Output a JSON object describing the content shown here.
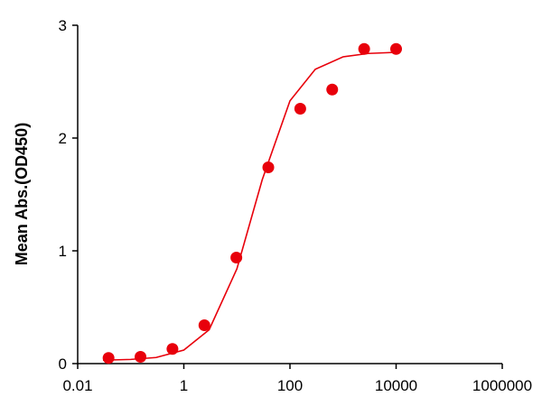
{
  "chart_data": {
    "type": "scatter",
    "y_label": "Mean Abs.(OD450)",
    "log_x": true,
    "points": {
      "color": "#e8000b",
      "x": [
        10000,
        2500,
        625,
        156.25,
        39.0625,
        9.765625,
        2.44140625,
        0.6103515625,
        0.152587890625,
        0.03814697265625
      ],
      "values": [
        2.79,
        2.79,
        2.43,
        2.26,
        1.74,
        0.94,
        0.34,
        0.13,
        0.06,
        0.05
      ]
    },
    "curve": {
      "color": "#e8000b",
      "x": [
        0.03,
        0.1,
        0.3,
        1,
        3,
        10,
        30,
        100,
        300,
        1000,
        3000,
        10000
      ],
      "values": [
        0.03,
        0.037,
        0.054,
        0.12,
        0.3,
        0.84,
        1.63,
        2.33,
        2.61,
        2.72,
        2.75,
        2.76
      ]
    },
    "xlim": [
      0.01,
      1000000
    ],
    "xticks": [
      0.01,
      1,
      100,
      10000,
      1000000
    ],
    "ylim": [
      0,
      3
    ],
    "yticks": [
      0,
      1,
      2,
      3
    ]
  }
}
